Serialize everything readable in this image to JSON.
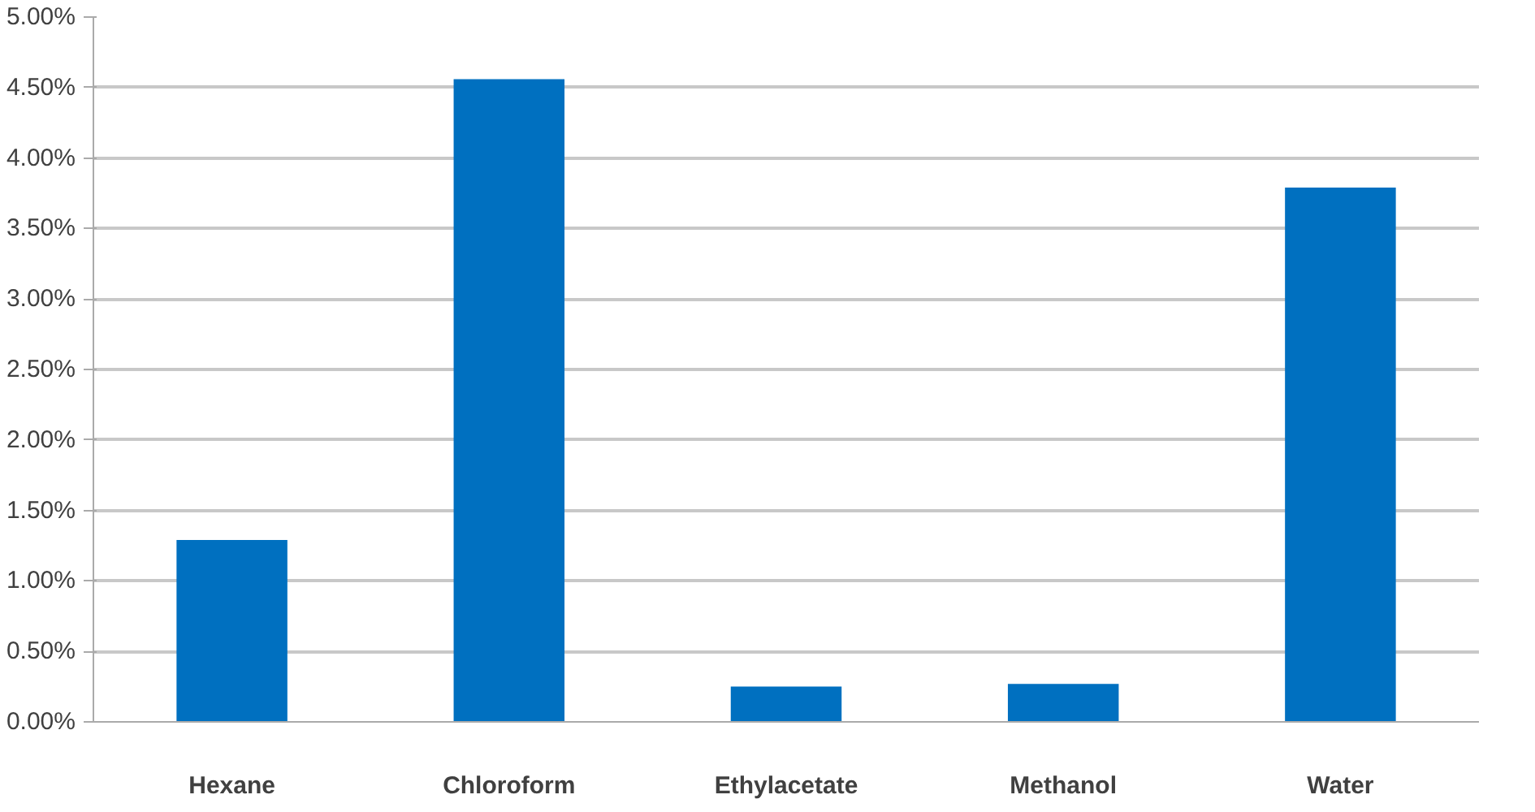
{
  "chart_data": {
    "type": "bar",
    "categories": [
      "Hexane",
      "Chloroform",
      "Ethylacetate",
      "Methanol",
      "Water"
    ],
    "values": [
      1.29,
      4.56,
      0.25,
      0.27,
      3.79
    ],
    "color": "#0070c0",
    "ylim": [
      0,
      5
    ],
    "yticks": [
      {
        "value": 0,
        "label": "0.00%"
      },
      {
        "value": 0.5,
        "label": "0.50%"
      },
      {
        "value": 1,
        "label": "1.00%"
      },
      {
        "value": 1.5,
        "label": "1.50%"
      },
      {
        "value": 2,
        "label": "2.00%"
      },
      {
        "value": 2.5,
        "label": "2.50%"
      },
      {
        "value": 3,
        "label": "3.00%"
      },
      {
        "value": 3.5,
        "label": "3.50%"
      },
      {
        "value": 4,
        "label": "4.00%"
      },
      {
        "value": 4.5,
        "label": "4.50%"
      },
      {
        "value": 5,
        "label": "5.00%"
      }
    ],
    "grid": "y"
  }
}
